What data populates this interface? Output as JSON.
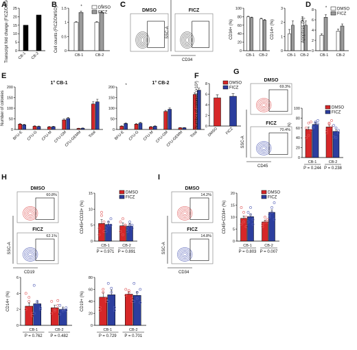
{
  "colors": {
    "dmso_red": "#d62728",
    "ficz_blue": "#2c3e9e",
    "dmso_white": "#ffffff",
    "ficz_gray": "#9a9a9a",
    "dot_red": "#e15b5b",
    "dot_blue": "#5561b8"
  },
  "chart_data": [
    {
      "id": "A",
      "letter": "A",
      "type": "bar",
      "categories": [
        "CB-1",
        "CB-2"
      ],
      "values": [
        15,
        21
      ],
      "ylabel": "Transcript fold change (FICZ/DMSO)",
      "ylim": [
        0,
        25
      ],
      "yticks": [
        0,
        5,
        10,
        15,
        20,
        25
      ],
      "colors": [
        "#000000",
        "#000000"
      ]
    },
    {
      "id": "B",
      "letter": "B",
      "type": "bar",
      "categories": [
        "CB-1",
        "CB-2"
      ],
      "series": [
        {
          "name": "DMSO",
          "values": [
            1.0,
            1.0
          ],
          "err": [
            0.03,
            0.03
          ]
        },
        {
          "name": "FICZ",
          "values": [
            1.35,
            1.35
          ],
          "err": [
            0.05,
            0.05
          ]
        }
      ],
      "ylabel": "Cell counts (FICZ/DMSO)",
      "ylim": [
        0,
        1.5
      ],
      "yticks": [
        0,
        0.5,
        1.0,
        1.5
      ],
      "annotations": [
        "*",
        "*"
      ],
      "legend": "top-right"
    },
    {
      "id": "C1",
      "letter": "C",
      "type": "bar",
      "categories": [
        "CB-1",
        "CB-2"
      ],
      "series": [
        {
          "name": "DMSO",
          "values": [
            80,
            75
          ],
          "err": [
            1,
            1.5
          ]
        },
        {
          "name": "FICZ",
          "values": [
            78,
            72
          ],
          "err": [
            1,
            1.5
          ]
        }
      ],
      "ylabel": "CD34+ (%)",
      "ylim": [
        0,
        100
      ],
      "yticks": [
        0,
        20,
        40,
        60,
        80,
        100
      ]
    },
    {
      "id": "C2",
      "letter": "",
      "type": "bar",
      "categories": [
        "CB-1",
        "CB-2"
      ],
      "series": [
        {
          "name": "DMSO",
          "values": [
            1.2,
            2.1
          ],
          "err": [
            0.3,
            0.3
          ]
        },
        {
          "name": "FICZ",
          "values": [
            1.8,
            1.8
          ],
          "err": [
            0.3,
            0.3
          ]
        }
      ],
      "ylabel": "CD14+ (%)",
      "ylim": [
        0,
        3
      ],
      "yticks": [
        0,
        1,
        2,
        3
      ]
    },
    {
      "id": "D",
      "letter": "D",
      "type": "bar",
      "categories": [
        "CB-1",
        "CB-2"
      ],
      "series": [
        {
          "name": "DMSO",
          "values": [
            3.0,
            3.8
          ],
          "err": [
            0.3,
            0.4
          ]
        },
        {
          "name": "FICZ",
          "values": [
            6.5,
            4.8
          ],
          "err": [
            0.5,
            0.4
          ]
        }
      ],
      "ylabel": "Apoptosis (%)",
      "ylim": [
        0,
        8
      ],
      "yticks": [
        0,
        2,
        4,
        6,
        8
      ],
      "annotations": [
        "*",
        ""
      ],
      "legend": "top-right"
    },
    {
      "id": "E1",
      "letter": "E",
      "type": "bar",
      "title": "1° CB-1",
      "categories": [
        "BFU-E",
        "CFU-G",
        "CFU-M",
        "CFU-GM",
        "CFU-GEMM",
        "Total"
      ],
      "series": [
        {
          "name": "DMSO",
          "values": [
            25,
            15,
            12,
            45,
            5,
            120
          ],
          "err": [
            3,
            2,
            2,
            4,
            1,
            10
          ]
        },
        {
          "name": "FICZ",
          "values": [
            22,
            14,
            13,
            52,
            6,
            130
          ],
          "err": [
            3,
            2,
            2,
            5,
            1,
            12
          ]
        }
      ],
      "ylabel": "Number of colonies",
      "ylim": [
        0,
        200
      ],
      "yticks": [
        0,
        50,
        100,
        150,
        200
      ]
    },
    {
      "id": "E2",
      "letter": "",
      "type": "bar",
      "title": "1° CB-2",
      "categories": [
        "BFU-E",
        "CFU-G",
        "CFU-M",
        "CFU-GM",
        "CFU-GEMM",
        "Total"
      ],
      "series": [
        {
          "name": "DMSO",
          "values": [
            15,
            25,
            12,
            85,
            8,
            165
          ],
          "err": [
            2,
            3,
            2,
            5,
            1,
            8
          ]
        },
        {
          "name": "FICZ",
          "values": [
            28,
            30,
            15,
            95,
            8,
            185
          ],
          "err": [
            3,
            3,
            2,
            6,
            1,
            10
          ]
        }
      ],
      "ylabel": "",
      "ylim": [
        0,
        200
      ],
      "yticks": [
        0,
        50,
        100,
        150,
        200
      ],
      "annotations": [
        "*",
        "",
        "",
        "",
        "",
        ""
      ]
    },
    {
      "id": "F",
      "letter": "F",
      "type": "bar",
      "categories": [
        "DMSO",
        "FICZ"
      ],
      "values": [
        5.3,
        5.6
      ],
      "err": [
        0.6,
        0.5
      ],
      "colors": [
        "#d62728",
        "#2c3e9e"
      ],
      "ylabel": "Number of colonies (×10³)",
      "ylim": [
        0,
        8
      ],
      "yticks": [
        0,
        2,
        4,
        6,
        8
      ],
      "legend": "top-right"
    },
    {
      "id": "G",
      "letter": "",
      "type": "bar",
      "categories": [
        "CB-1",
        "CB-2"
      ],
      "series": [
        {
          "name": "DMSO",
          "values": [
            57,
            62
          ],
          "err": [
            5,
            4
          ],
          "points": [
            [
              40,
              70,
              55,
              60,
              45,
              72
            ],
            [
              55,
              70,
              62,
              50,
              68,
              75
            ]
          ]
        },
        {
          "name": "FICZ",
          "values": [
            67,
            53
          ],
          "err": [
            4,
            5
          ],
          "points": [
            [
              62,
              70,
              75,
              60,
              72,
              68
            ],
            [
              42,
              60,
              55,
              65,
              40,
              50
            ]
          ]
        }
      ],
      "ylabel": "CD45+ (%)",
      "ylim": [
        0,
        100
      ],
      "yticks": [
        0,
        20,
        40,
        60,
        80,
        100
      ],
      "pvalues": [
        "P = 0.244",
        "P = 0.238"
      ],
      "legend": "top-right"
    },
    {
      "id": "H1",
      "letter": "",
      "type": "bar",
      "categories": [
        "CB-1",
        "CB-2"
      ],
      "series": [
        {
          "name": "DMSO",
          "values": [
            5.5,
            4.8
          ],
          "err": [
            1.2,
            0.9
          ],
          "points": [
            [
              2,
              8,
              6,
              4,
              9,
              3
            ],
            [
              3,
              7,
              5,
              6,
              2,
              5
            ]
          ]
        },
        {
          "name": "FICZ",
          "values": [
            5.2,
            4.7
          ],
          "err": [
            1.0,
            0.8
          ],
          "points": [
            [
              3,
              5,
              7,
              4,
              6,
              5
            ],
            [
              4,
              6,
              5,
              3,
              5,
              4
            ]
          ]
        }
      ],
      "ylabel": "CD45+CD33+ (%)",
      "ylim": [
        0,
        15
      ],
      "yticks": [
        0,
        5,
        10,
        15
      ],
      "pvalues": [
        "P = 0.971",
        "P = 0.891"
      ],
      "legend": "top-right"
    },
    {
      "id": "I",
      "letter": "",
      "type": "bar",
      "categories": [
        "CB-1",
        "CB-2"
      ],
      "series": [
        {
          "name": "DMSO",
          "values": [
            9.5,
            8.0
          ],
          "err": [
            1.0,
            0.8
          ],
          "points": [
            [
              7,
              12,
              10,
              14,
              8,
              6
            ],
            [
              6,
              8,
              9,
              7,
              10,
              8
            ]
          ]
        },
        {
          "name": "FICZ",
          "values": [
            10.2,
            12.0
          ],
          "err": [
            1.2,
            1.0
          ],
          "points": [
            [
              8,
              14,
              9,
              12,
              11,
              7
            ],
            [
              10,
              14,
              16,
              11,
              12,
              9
            ]
          ]
        }
      ],
      "ylabel": "CD45+CD34+ (%)",
      "ylim": [
        0,
        20
      ],
      "yticks": [
        0,
        5,
        10,
        15,
        20
      ],
      "pvalues": [
        "P = 0.803",
        "P = 0.007"
      ],
      "legend": "top-right"
    },
    {
      "id": "J1",
      "letter": "",
      "type": "bar",
      "categories": [
        "CB-1",
        "CB-2"
      ],
      "series": [
        {
          "name": "DMSO",
          "values": [
            2.4,
            2.2
          ],
          "err": [
            0.4,
            0.3
          ],
          "points": [
            [
              4,
              3,
              1.5,
              2,
              3.5,
              1.2
            ],
            [
              3,
              2,
              2.5,
              1.5,
              1.8,
              3.1
            ]
          ]
        },
        {
          "name": "FICZ",
          "values": [
            2.7,
            2.0
          ],
          "err": [
            0.4,
            0.3
          ],
          "points": [
            [
              5,
              3,
              2.2,
              1.5,
              2.8,
              2
            ],
            [
              2.5,
              1.8,
              2.2,
              1.4,
              2,
              1.9
            ]
          ]
        }
      ],
      "ylabel": "CD14+ (%)",
      "ylim": [
        0,
        6
      ],
      "yticks": [
        0,
        2,
        4,
        6
      ],
      "pvalues": [
        "P = 0.762",
        "P = 0.482"
      ]
    },
    {
      "id": "J2",
      "letter": "",
      "type": "bar",
      "categories": [
        "CB-1",
        "CB-2"
      ],
      "series": [
        {
          "name": "DMSO",
          "values": [
            47,
            52
          ],
          "err": [
            7,
            4
          ],
          "points": [
            [
              25,
              60,
              45,
              30,
              55,
              40
            ],
            [
              60,
              55,
              45,
              50,
              58,
              40
            ]
          ]
        },
        {
          "name": "FICZ",
          "values": [
            51,
            50
          ],
          "err": [
            8,
            6
          ],
          "points": [
            [
              70,
              62,
              30,
              40,
              55,
              25
            ],
            [
              70,
              45,
              60,
              40,
              55,
              38
            ]
          ]
        }
      ],
      "ylabel": "CD19+ (%)",
      "ylim": [
        0,
        80
      ],
      "yticks": [
        0,
        20,
        40,
        60,
        80
      ],
      "pvalues": [
        "P = 0.729",
        "P = 0.701"
      ]
    }
  ],
  "flow": {
    "C": {
      "letter": "C",
      "labels": [
        "DMSO",
        "FICZ"
      ],
      "xaxis": "CD34",
      "yaxis": "SSC-A"
    },
    "G": {
      "letter": "G",
      "labels": [
        "DMSO",
        "FICZ"
      ],
      "pcts": [
        "69.3%",
        "70.4%"
      ],
      "xaxis": "CD45",
      "yaxis": "SSC-A"
    },
    "H": {
      "letter": "H",
      "labels": [
        "DMSO",
        "FICZ"
      ],
      "pcts": [
        "60.8%",
        "62.1%"
      ],
      "xaxis": "CD19",
      "yaxis": "SSC-A"
    },
    "I": {
      "letter": "I",
      "labels": [
        "DMSO",
        "FICZ"
      ],
      "pcts": [
        "14.2%",
        "14.8%"
      ],
      "xaxis": "CD34",
      "yaxis": "SSC-A"
    }
  }
}
